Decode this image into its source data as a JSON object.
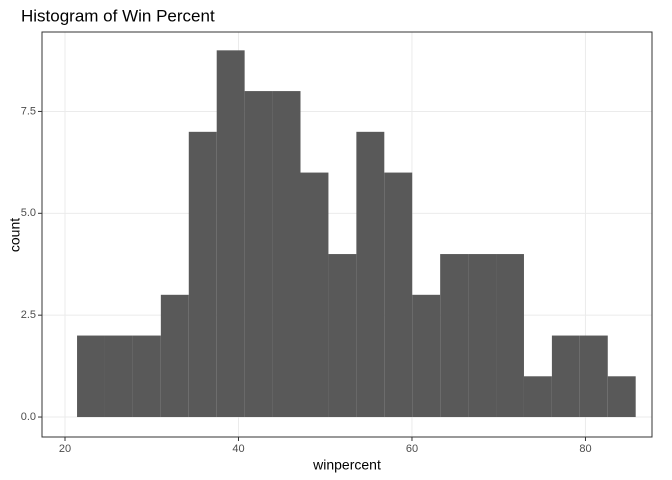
{
  "chart_data": {
    "type": "histogram",
    "title": "Histogram of Win Percent",
    "x_label": "winpercent",
    "y_label": "count",
    "bins": [
      21.39,
      24.61,
      27.83,
      31.05,
      34.27,
      37.49,
      40.71,
      43.93,
      47.15,
      50.37,
      53.59,
      56.81,
      60.03,
      63.25,
      66.47,
      69.69,
      72.91,
      76.13,
      79.35,
      82.57,
      85.79
    ],
    "counts": [
      2,
      2,
      2,
      3,
      7,
      9,
      8,
      8,
      6,
      4,
      7,
      6,
      3,
      4,
      4,
      4,
      1,
      2,
      2,
      1
    ],
    "color": "#595959",
    "xlim": [
      17.35,
      87.67
    ],
    "xticks": [
      20,
      40,
      60,
      80
    ],
    "ylim": [
      -0.49,
      9.45
    ],
    "yticks": [
      {
        "value": 0,
        "label": "0.0"
      },
      {
        "value": 2.5,
        "label": "2.5"
      },
      {
        "value": 5,
        "label": "5.0"
      },
      {
        "value": 7.5,
        "label": "7.5"
      }
    ],
    "grid": true
  }
}
